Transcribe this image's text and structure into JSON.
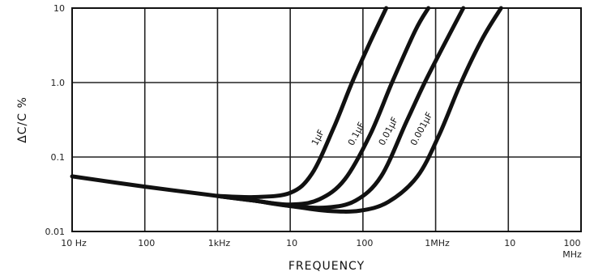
{
  "chart_data": {
    "type": "line",
    "title": "",
    "xlabel": "FREQUENCY",
    "ylabel": "ΔC/C %",
    "x_scale": "log",
    "y_scale": "log",
    "x_decades": 7,
    "y_decades": 3,
    "x_ticks": [
      "10 Hz",
      "100",
      "1kHz",
      "10",
      "100",
      "1MHz",
      "10",
      "100"
    ],
    "x_tick_suffix": "MHz",
    "y_ticks": [
      "0.01",
      "0.1",
      "1.0",
      "10"
    ],
    "ylim": [
      0.01,
      10
    ],
    "grid": true,
    "common_baseline": [
      {
        "decade": 0.0,
        "y": 0.055
      },
      {
        "decade": 1.0,
        "y": 0.04
      },
      {
        "decade": 2.0,
        "y": 0.03
      }
    ],
    "series": [
      {
        "name": "1µF",
        "points": [
          {
            "decade": 2.0,
            "y": 0.03
          },
          {
            "decade": 2.5,
            "y": 0.029
          },
          {
            "decade": 3.0,
            "y": 0.033
          },
          {
            "decade": 3.3,
            "y": 0.06
          },
          {
            "decade": 3.6,
            "y": 0.25
          },
          {
            "decade": 3.85,
            "y": 1.0
          },
          {
            "decade": 4.1,
            "y": 3.5
          },
          {
            "decade": 4.32,
            "y": 10
          }
        ]
      },
      {
        "name": "0.1µF",
        "points": [
          {
            "decade": 2.0,
            "y": 0.03
          },
          {
            "decade": 2.5,
            "y": 0.026
          },
          {
            "decade": 3.0,
            "y": 0.023
          },
          {
            "decade": 3.4,
            "y": 0.027
          },
          {
            "decade": 3.75,
            "y": 0.05
          },
          {
            "decade": 4.1,
            "y": 0.2
          },
          {
            "decade": 4.4,
            "y": 1.0
          },
          {
            "decade": 4.72,
            "y": 5.0
          },
          {
            "decade": 4.9,
            "y": 10
          }
        ]
      },
      {
        "name": "0.01µF",
        "points": [
          {
            "decade": 2.0,
            "y": 0.03
          },
          {
            "decade": 2.5,
            "y": 0.026
          },
          {
            "decade": 3.0,
            "y": 0.022
          },
          {
            "decade": 3.5,
            "y": 0.021
          },
          {
            "decade": 3.9,
            "y": 0.026
          },
          {
            "decade": 4.25,
            "y": 0.055
          },
          {
            "decade": 4.6,
            "y": 0.3
          },
          {
            "decade": 4.85,
            "y": 1.0
          },
          {
            "decade": 5.1,
            "y": 3.0
          },
          {
            "decade": 5.38,
            "y": 10
          }
        ]
      },
      {
        "name": "0.001µF",
        "points": [
          {
            "decade": 2.0,
            "y": 0.03
          },
          {
            "decade": 2.5,
            "y": 0.026
          },
          {
            "decade": 3.0,
            "y": 0.022
          },
          {
            "decade": 3.5,
            "y": 0.019
          },
          {
            "decade": 3.95,
            "y": 0.019
          },
          {
            "decade": 4.35,
            "y": 0.025
          },
          {
            "decade": 4.75,
            "y": 0.055
          },
          {
            "decade": 5.05,
            "y": 0.2
          },
          {
            "decade": 5.35,
            "y": 1.0
          },
          {
            "decade": 5.65,
            "y": 4.0
          },
          {
            "decade": 5.9,
            "y": 10
          }
        ]
      }
    ]
  }
}
